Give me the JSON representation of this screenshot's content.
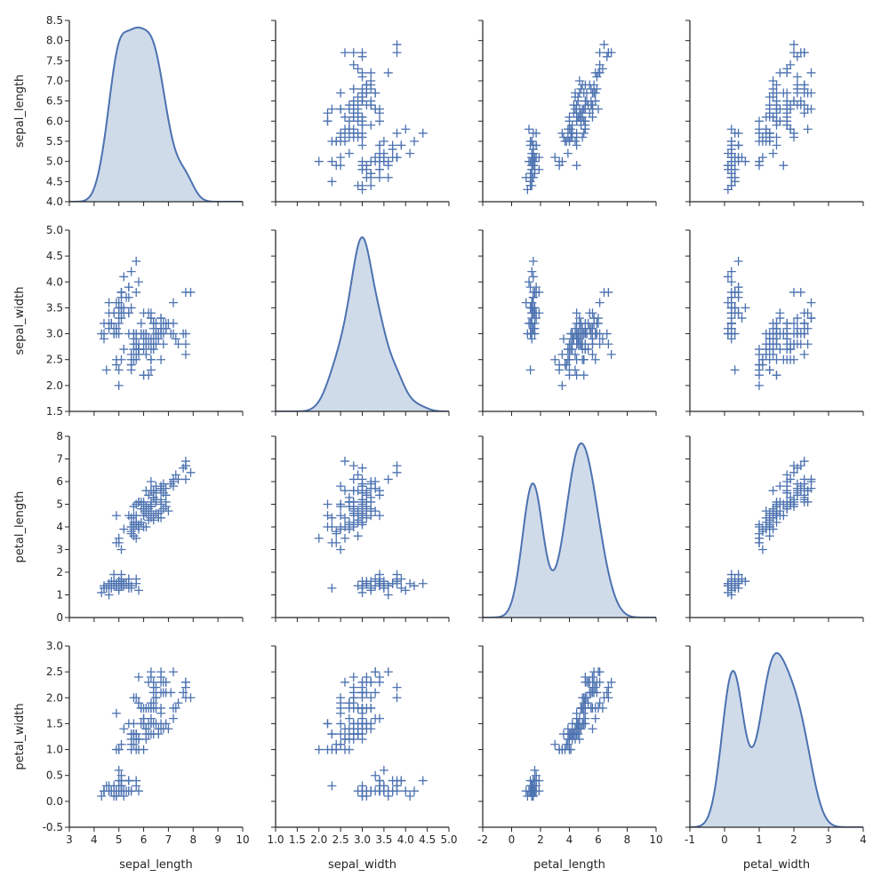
{
  "chart_data": {
    "type": "scatter",
    "kind": "pairplot",
    "dataset": "iris",
    "marker": "+",
    "diag_kind": "kde",
    "color": "#4c72b0",
    "kde_fill": "#d0dbea",
    "variables": [
      {
        "name": "sepal_length",
        "lim": [
          4.0,
          8.5
        ],
        "ticks": [
          4.0,
          4.5,
          5.0,
          5.5,
          6.0,
          6.5,
          7.0,
          7.5,
          8.0,
          8.5
        ],
        "tick_labels": [
          "4.0",
          "4.5",
          "5.0",
          "5.5",
          "6.0",
          "6.5",
          "7.0",
          "7.5",
          "8.0",
          "8.5"
        ],
        "xlim": [
          3,
          10
        ],
        "xticks": [
          3,
          4,
          5,
          6,
          7,
          8,
          9,
          10
        ],
        "xtick_labels": [
          "3",
          "4",
          "5",
          "6",
          "7",
          "8",
          "9",
          "10"
        ]
      },
      {
        "name": "sepal_width",
        "lim": [
          1.5,
          5.0
        ],
        "ticks": [
          1.5,
          2.0,
          2.5,
          3.0,
          3.5,
          4.0,
          4.5,
          5.0
        ],
        "tick_labels": [
          "1.5",
          "2.0",
          "2.5",
          "3.0",
          "3.5",
          "4.0",
          "4.5",
          "5.0"
        ],
        "xlim": [
          1.0,
          5.0
        ],
        "xticks": [
          1.0,
          1.5,
          2.0,
          2.5,
          3.0,
          3.5,
          4.0,
          4.5,
          5.0
        ],
        "xtick_labels": [
          "1.0",
          "1.5",
          "2.0",
          "2.5",
          "3.0",
          "3.5",
          "4.0",
          "4.5",
          "5.0"
        ]
      },
      {
        "name": "petal_length",
        "lim": [
          0,
          8
        ],
        "ticks": [
          0,
          1,
          2,
          3,
          4,
          5,
          6,
          7,
          8
        ],
        "tick_labels": [
          "0",
          "1",
          "2",
          "3",
          "4",
          "5",
          "6",
          "7",
          "8"
        ],
        "xlim": [
          -2,
          10
        ],
        "xticks": [
          -2,
          0,
          2,
          4,
          6,
          8,
          10
        ],
        "xtick_labels": [
          "-2",
          "0",
          "2",
          "4",
          "6",
          "8",
          "10"
        ]
      },
      {
        "name": "petal_width",
        "lim": [
          -0.5,
          3.0
        ],
        "ticks": [
          -0.5,
          0.0,
          0.5,
          1.0,
          1.5,
          2.0,
          2.5,
          3.0
        ],
        "tick_labels": [
          "-0.5",
          "0.0",
          "0.5",
          "1.0",
          "1.5",
          "2.0",
          "2.5",
          "3.0"
        ],
        "xlim": [
          -1,
          4
        ],
        "xticks": [
          -1,
          0,
          1,
          2,
          3,
          4
        ],
        "xtick_labels": [
          "-1",
          "0",
          "1",
          "2",
          "3",
          "4"
        ]
      }
    ],
    "observations": [
      [
        5.1,
        3.5,
        1.4,
        0.2
      ],
      [
        4.9,
        3.0,
        1.4,
        0.2
      ],
      [
        4.7,
        3.2,
        1.3,
        0.2
      ],
      [
        4.6,
        3.1,
        1.5,
        0.2
      ],
      [
        5.0,
        3.6,
        1.4,
        0.2
      ],
      [
        5.4,
        3.9,
        1.7,
        0.4
      ],
      [
        4.6,
        3.4,
        1.4,
        0.3
      ],
      [
        5.0,
        3.4,
        1.5,
        0.2
      ],
      [
        4.4,
        2.9,
        1.4,
        0.2
      ],
      [
        4.9,
        3.1,
        1.5,
        0.1
      ],
      [
        5.4,
        3.7,
        1.5,
        0.2
      ],
      [
        4.8,
        3.4,
        1.6,
        0.2
      ],
      [
        4.8,
        3.0,
        1.4,
        0.1
      ],
      [
        4.3,
        3.0,
        1.1,
        0.1
      ],
      [
        5.8,
        4.0,
        1.2,
        0.2
      ],
      [
        5.7,
        4.4,
        1.5,
        0.4
      ],
      [
        5.4,
        3.9,
        1.3,
        0.4
      ],
      [
        5.1,
        3.5,
        1.4,
        0.3
      ],
      [
        5.7,
        3.8,
        1.7,
        0.3
      ],
      [
        5.1,
        3.8,
        1.5,
        0.3
      ],
      [
        5.4,
        3.4,
        1.7,
        0.2
      ],
      [
        5.1,
        3.7,
        1.5,
        0.4
      ],
      [
        4.6,
        3.6,
        1.0,
        0.2
      ],
      [
        5.1,
        3.3,
        1.7,
        0.5
      ],
      [
        4.8,
        3.4,
        1.9,
        0.2
      ],
      [
        5.0,
        3.0,
        1.6,
        0.2
      ],
      [
        5.0,
        3.4,
        1.6,
        0.4
      ],
      [
        5.2,
        3.5,
        1.5,
        0.2
      ],
      [
        5.2,
        3.4,
        1.4,
        0.2
      ],
      [
        4.7,
        3.2,
        1.6,
        0.2
      ],
      [
        4.8,
        3.1,
        1.6,
        0.2
      ],
      [
        5.4,
        3.4,
        1.5,
        0.4
      ],
      [
        5.2,
        4.1,
        1.5,
        0.1
      ],
      [
        5.5,
        4.2,
        1.4,
        0.2
      ],
      [
        4.9,
        3.1,
        1.5,
        0.2
      ],
      [
        5.0,
        3.2,
        1.2,
        0.2
      ],
      [
        5.5,
        3.5,
        1.3,
        0.2
      ],
      [
        4.9,
        3.6,
        1.4,
        0.1
      ],
      [
        4.4,
        3.0,
        1.3,
        0.2
      ],
      [
        5.1,
        3.4,
        1.5,
        0.2
      ],
      [
        5.0,
        3.5,
        1.3,
        0.3
      ],
      [
        4.5,
        2.3,
        1.3,
        0.3
      ],
      [
        4.4,
        3.2,
        1.3,
        0.2
      ],
      [
        5.0,
        3.5,
        1.6,
        0.6
      ],
      [
        5.1,
        3.8,
        1.9,
        0.4
      ],
      [
        4.8,
        3.0,
        1.4,
        0.3
      ],
      [
        5.1,
        3.8,
        1.6,
        0.2
      ],
      [
        4.6,
        3.2,
        1.4,
        0.2
      ],
      [
        5.3,
        3.7,
        1.5,
        0.2
      ],
      [
        5.0,
        3.3,
        1.4,
        0.2
      ],
      [
        7.0,
        3.2,
        4.7,
        1.4
      ],
      [
        6.4,
        3.2,
        4.5,
        1.5
      ],
      [
        6.9,
        3.1,
        4.9,
        1.5
      ],
      [
        5.5,
        2.3,
        4.0,
        1.3
      ],
      [
        6.5,
        2.8,
        4.6,
        1.5
      ],
      [
        5.7,
        2.8,
        4.5,
        1.3
      ],
      [
        6.3,
        3.3,
        4.7,
        1.6
      ],
      [
        4.9,
        2.4,
        3.3,
        1.0
      ],
      [
        6.6,
        2.9,
        4.6,
        1.3
      ],
      [
        5.2,
        2.7,
        3.9,
        1.4
      ],
      [
        5.0,
        2.0,
        3.5,
        1.0
      ],
      [
        5.9,
        3.0,
        4.2,
        1.5
      ],
      [
        6.0,
        2.2,
        4.0,
        1.0
      ],
      [
        6.1,
        2.9,
        4.7,
        1.4
      ],
      [
        5.6,
        2.9,
        3.6,
        1.3
      ],
      [
        6.7,
        3.1,
        4.4,
        1.4
      ],
      [
        5.6,
        3.0,
        4.5,
        1.5
      ],
      [
        5.8,
        2.7,
        4.1,
        1.0
      ],
      [
        6.2,
        2.2,
        4.5,
        1.5
      ],
      [
        5.6,
        2.5,
        3.9,
        1.1
      ],
      [
        5.9,
        3.2,
        4.8,
        1.8
      ],
      [
        6.1,
        2.8,
        4.0,
        1.3
      ],
      [
        6.3,
        2.5,
        4.9,
        1.5
      ],
      [
        6.1,
        2.8,
        4.7,
        1.2
      ],
      [
        6.4,
        2.9,
        4.3,
        1.3
      ],
      [
        6.6,
        3.0,
        4.4,
        1.4
      ],
      [
        6.8,
        2.8,
        4.8,
        1.4
      ],
      [
        6.7,
        3.0,
        5.0,
        1.7
      ],
      [
        6.0,
        2.9,
        4.5,
        1.5
      ],
      [
        5.7,
        2.6,
        3.5,
        1.0
      ],
      [
        5.5,
        2.4,
        3.8,
        1.1
      ],
      [
        5.5,
        2.4,
        3.7,
        1.0
      ],
      [
        5.8,
        2.7,
        3.9,
        1.2
      ],
      [
        6.0,
        2.7,
        5.1,
        1.6
      ],
      [
        5.4,
        3.0,
        4.5,
        1.5
      ],
      [
        6.0,
        3.4,
        4.5,
        1.6
      ],
      [
        6.7,
        3.1,
        4.7,
        1.5
      ],
      [
        6.3,
        2.3,
        4.4,
        1.3
      ],
      [
        5.6,
        3.0,
        4.1,
        1.3
      ],
      [
        5.5,
        2.5,
        4.0,
        1.3
      ],
      [
        5.5,
        2.6,
        4.4,
        1.2
      ],
      [
        6.1,
        3.0,
        4.6,
        1.4
      ],
      [
        5.8,
        2.6,
        4.0,
        1.2
      ],
      [
        5.0,
        2.3,
        3.3,
        1.0
      ],
      [
        5.6,
        2.7,
        4.2,
        1.3
      ],
      [
        5.7,
        3.0,
        4.2,
        1.2
      ],
      [
        5.7,
        2.9,
        4.2,
        1.3
      ],
      [
        6.2,
        2.9,
        4.3,
        1.3
      ],
      [
        5.1,
        2.5,
        3.0,
        1.1
      ],
      [
        5.7,
        2.8,
        4.1,
        1.3
      ],
      [
        6.3,
        3.3,
        6.0,
        2.5
      ],
      [
        5.8,
        2.7,
        5.1,
        1.9
      ],
      [
        7.1,
        3.0,
        5.9,
        2.1
      ],
      [
        6.3,
        2.9,
        5.6,
        1.8
      ],
      [
        6.5,
        3.0,
        5.8,
        2.2
      ],
      [
        7.6,
        3.0,
        6.6,
        2.1
      ],
      [
        4.9,
        2.5,
        4.5,
        1.7
      ],
      [
        7.3,
        2.9,
        6.3,
        1.8
      ],
      [
        6.7,
        2.5,
        5.8,
        1.8
      ],
      [
        7.2,
        3.6,
        6.1,
        2.5
      ],
      [
        6.5,
        3.2,
        5.1,
        2.0
      ],
      [
        6.4,
        2.7,
        5.3,
        1.9
      ],
      [
        6.8,
        3.0,
        5.5,
        2.1
      ],
      [
        5.7,
        2.5,
        5.0,
        2.0
      ],
      [
        5.8,
        2.8,
        5.1,
        2.4
      ],
      [
        6.4,
        3.2,
        5.3,
        2.3
      ],
      [
        6.5,
        3.0,
        5.5,
        1.8
      ],
      [
        7.7,
        3.8,
        6.7,
        2.2
      ],
      [
        7.7,
        2.6,
        6.9,
        2.3
      ],
      [
        6.0,
        2.2,
        5.0,
        1.5
      ],
      [
        6.9,
        3.2,
        5.7,
        2.3
      ],
      [
        5.6,
        2.8,
        4.9,
        2.0
      ],
      [
        7.7,
        2.8,
        6.7,
        2.0
      ],
      [
        6.3,
        2.7,
        4.9,
        1.8
      ],
      [
        6.7,
        3.3,
        5.7,
        2.1
      ],
      [
        7.2,
        3.2,
        6.0,
        1.8
      ],
      [
        6.2,
        2.8,
        4.8,
        1.8
      ],
      [
        6.1,
        3.0,
        4.9,
        1.8
      ],
      [
        6.4,
        2.8,
        5.6,
        2.1
      ],
      [
        7.2,
        3.0,
        5.8,
        1.6
      ],
      [
        7.4,
        2.8,
        6.1,
        1.9
      ],
      [
        7.9,
        3.8,
        6.4,
        2.0
      ],
      [
        6.4,
        2.8,
        5.6,
        2.2
      ],
      [
        6.3,
        2.8,
        5.1,
        1.5
      ],
      [
        6.1,
        2.6,
        5.6,
        1.4
      ],
      [
        7.7,
        3.0,
        6.1,
        2.3
      ],
      [
        6.3,
        3.4,
        5.6,
        2.4
      ],
      [
        6.4,
        3.1,
        5.5,
        1.8
      ],
      [
        6.0,
        3.0,
        4.8,
        1.8
      ],
      [
        6.9,
        3.1,
        5.4,
        2.1
      ],
      [
        6.7,
        3.1,
        5.6,
        2.4
      ],
      [
        6.9,
        3.1,
        5.1,
        2.3
      ],
      [
        5.8,
        2.7,
        5.1,
        1.9
      ],
      [
        6.8,
        3.2,
        5.9,
        2.3
      ],
      [
        6.7,
        3.3,
        5.7,
        2.5
      ],
      [
        6.7,
        3.0,
        5.2,
        2.3
      ],
      [
        6.3,
        2.5,
        5.0,
        1.9
      ],
      [
        6.5,
        3.0,
        5.2,
        2.0
      ],
      [
        6.2,
        3.4,
        5.4,
        2.3
      ],
      [
        5.9,
        3.0,
        5.1,
        1.8
      ]
    ]
  }
}
